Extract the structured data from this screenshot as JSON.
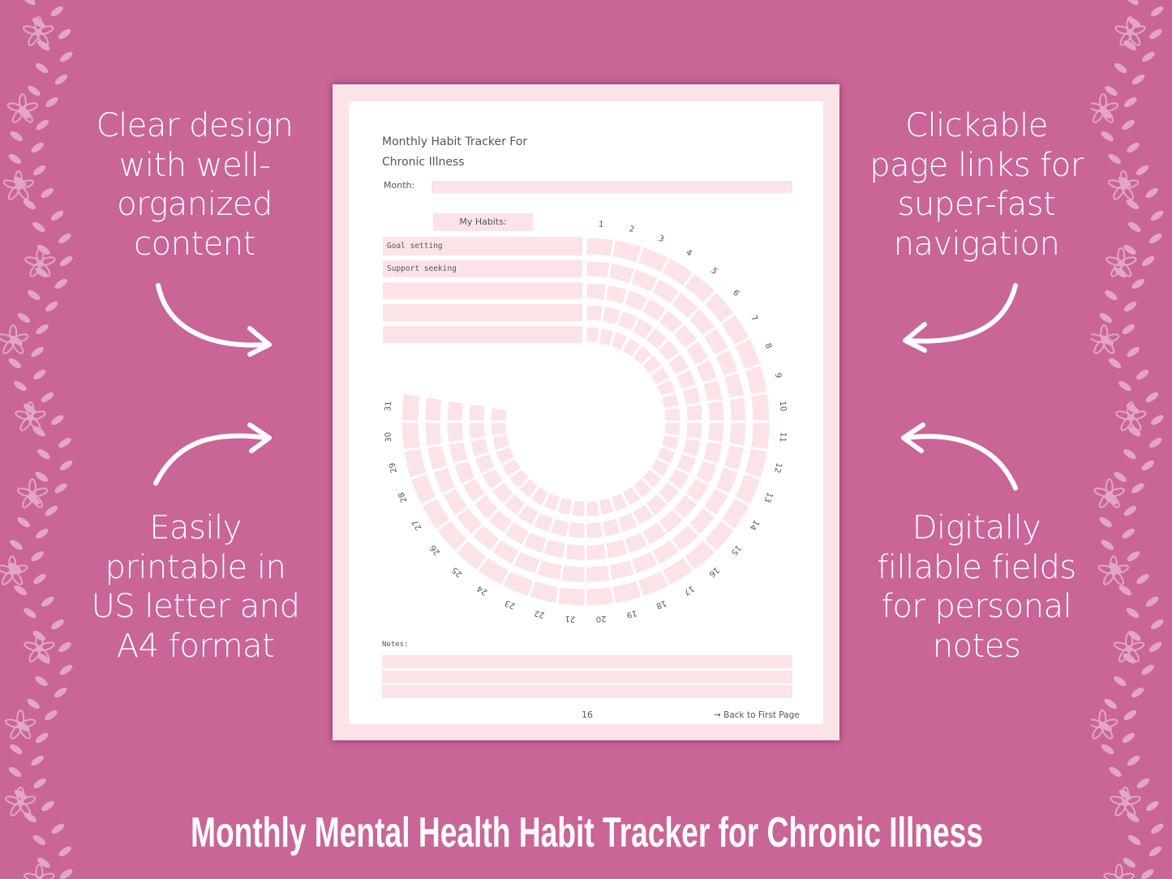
{
  "colors": {
    "background": "#c96597",
    "vine": "#e3a6c8",
    "page_border": "#fbe3e8",
    "field": "#fbe3e8",
    "text": "#555555"
  },
  "left_top": [
    "Clear design",
    "with well-",
    "organized",
    "content"
  ],
  "left_bottom": [
    "Easily",
    "printable in",
    "US letter and",
    "A4 format"
  ],
  "right_top": [
    "Clickable",
    "page links for",
    "super-fast",
    "navigation"
  ],
  "right_bottom": [
    "Digitally",
    "fillable fields",
    "for personal",
    "notes"
  ],
  "tracker": {
    "title_line1": "Monthly Habit Tracker For",
    "title_line2": "Chronic Illness",
    "month_label": "Month:",
    "month_value": "",
    "habits_label": "My Habits:",
    "habits": [
      "Goal setting",
      "Support seeking",
      "",
      "",
      ""
    ],
    "days": [
      "1",
      "2",
      "3",
      "4",
      "5",
      "6",
      "7",
      "8",
      "9",
      "10",
      "11",
      "12",
      "13",
      "14",
      "15",
      "16",
      "17",
      "18",
      "19",
      "20",
      "21",
      "22",
      "23",
      "24",
      "25",
      "26",
      "27",
      "28",
      "29",
      "30",
      "31"
    ],
    "notes_label": "Notes:",
    "notes": [
      "",
      "",
      ""
    ],
    "page_number": "16",
    "back_link": "→ Back to First Page"
  },
  "footer_title": "Monthly Mental Health Habit Tracker for Chronic Illness"
}
